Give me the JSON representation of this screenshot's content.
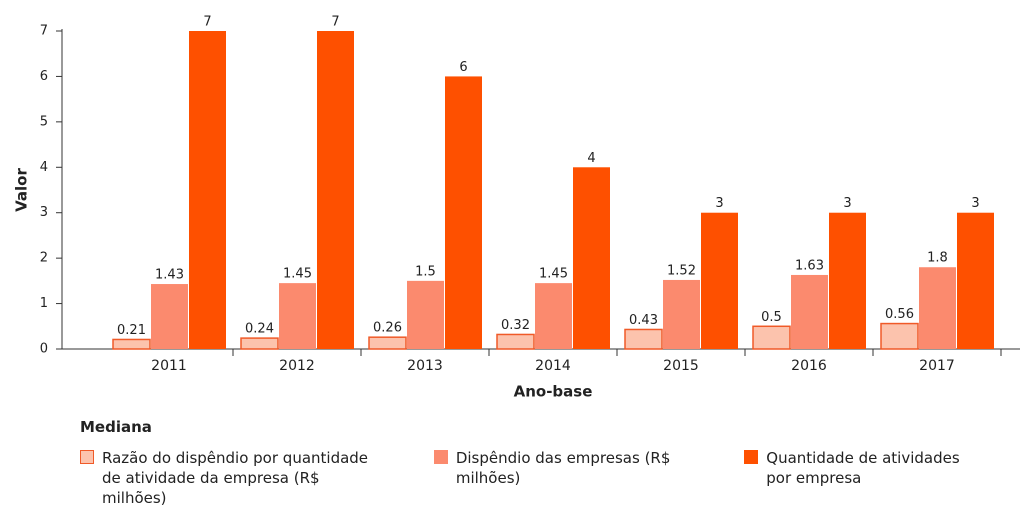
{
  "chart_data": {
    "type": "bar",
    "xlabel": "Ano-base",
    "ylabel": "Valor",
    "categories": [
      "2011",
      "2012",
      "2013",
      "2014",
      "2015",
      "2016",
      "2017"
    ],
    "legend_title": "Mediana",
    "series": [
      {
        "name": "Razão do dispêndio por quantidade de atividade da empresa (R$ milhões)",
        "color": "#fcc3ad",
        "border": "#f05a28",
        "values": [
          0.21,
          0.24,
          0.26,
          0.32,
          0.43,
          0.5,
          0.56
        ]
      },
      {
        "name": "Dispêndio das empresas (R$ milhões)",
        "color": "#fb8a6e",
        "values": [
          1.43,
          1.45,
          1.5,
          1.45,
          1.52,
          1.63,
          1.8
        ]
      },
      {
        "name": "Quantidade de atividades por empresa",
        "color": "#fe5000",
        "values": [
          7,
          7,
          6,
          4,
          3,
          3,
          3
        ]
      }
    ],
    "ylim": [
      0,
      7
    ],
    "yticks": [
      0,
      1,
      2,
      3,
      4,
      5,
      6,
      7
    ],
    "grid": false
  }
}
